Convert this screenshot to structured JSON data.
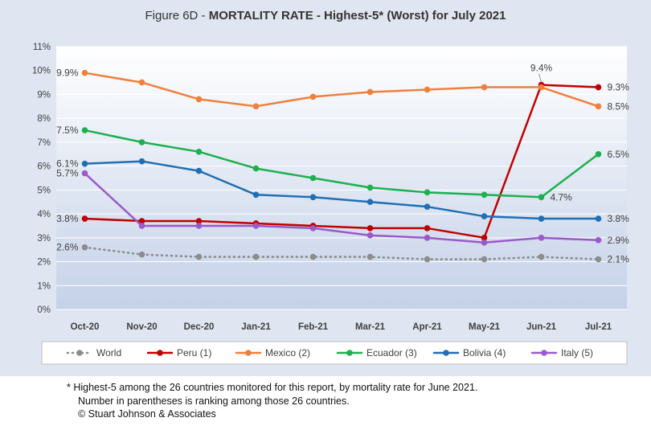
{
  "chart_data": {
    "type": "line",
    "title_prefix": "Figure 6D  - ",
    "title_main": "MORTALITY RATE - Highest-5* (Worst) for July 2021",
    "categories": [
      "Oct-20",
      "Nov-20",
      "Dec-20",
      "Jan-21",
      "Feb-21",
      "Mar-21",
      "Apr-21",
      "May-21",
      "Jun-21",
      "Jul-21"
    ],
    "y_ticks": [
      "0%",
      "1%",
      "2%",
      "3%",
      "4%",
      "5%",
      "6%",
      "7%",
      "8%",
      "9%",
      "10%",
      "11%"
    ],
    "ylim": [
      0,
      11
    ],
    "grid": true,
    "legend_position": "bottom",
    "series": [
      {
        "name": "World",
        "color": "#8c8c8c",
        "dashed": true,
        "values": [
          2.6,
          2.3,
          2.2,
          2.2,
          2.2,
          2.2,
          2.1,
          2.1,
          2.2,
          2.1
        ]
      },
      {
        "name": "Peru (1)",
        "color": "#c00000",
        "dashed": false,
        "values": [
          3.8,
          3.7,
          3.7,
          3.6,
          3.5,
          3.4,
          3.4,
          3.0,
          9.4,
          9.3
        ]
      },
      {
        "name": "Mexico (2)",
        "color": "#f07f3c",
        "dashed": false,
        "values": [
          9.9,
          9.5,
          8.8,
          8.5,
          8.9,
          9.1,
          9.2,
          9.3,
          9.3,
          8.5
        ]
      },
      {
        "name": "Ecuador (3)",
        "color": "#1db04f",
        "dashed": false,
        "values": [
          7.5,
          7.0,
          6.6,
          5.9,
          5.5,
          5.1,
          4.9,
          4.8,
          4.7,
          6.5
        ]
      },
      {
        "name": "Bolivia (4)",
        "color": "#1f6fb5",
        "dashed": false,
        "values": [
          6.1,
          6.2,
          5.8,
          4.8,
          4.7,
          4.5,
          4.3,
          3.9,
          3.8,
          3.8
        ]
      },
      {
        "name": "Italy (5)",
        "color": "#9b59c9",
        "dashed": false,
        "values": [
          5.7,
          3.5,
          3.5,
          3.5,
          3.4,
          3.1,
          3.0,
          2.8,
          3.0,
          2.9
        ]
      }
    ],
    "data_labels": [
      {
        "text": "9.9%",
        "series": 2,
        "index": 0,
        "side": "left"
      },
      {
        "text": "7.5%",
        "series": 3,
        "index": 0,
        "side": "left"
      },
      {
        "text": "6.1%",
        "series": 4,
        "index": 0,
        "side": "left"
      },
      {
        "text": "5.7%",
        "series": 5,
        "index": 0,
        "side": "left"
      },
      {
        "text": "3.8%",
        "series": 1,
        "index": 0,
        "side": "left"
      },
      {
        "text": "2.6%",
        "series": 0,
        "index": 0,
        "side": "left"
      },
      {
        "text": "9.4%",
        "series": 1,
        "index": 8,
        "side": "above"
      },
      {
        "text": "4.7%",
        "series": 3,
        "index": 8,
        "side": "right"
      },
      {
        "text": "9.3%",
        "series": 1,
        "index": 9,
        "side": "right"
      },
      {
        "text": "8.5%",
        "series": 2,
        "index": 9,
        "side": "right"
      },
      {
        "text": "6.5%",
        "series": 3,
        "index": 9,
        "side": "right"
      },
      {
        "text": "3.8%",
        "series": 4,
        "index": 9,
        "side": "right"
      },
      {
        "text": "2.9%",
        "series": 5,
        "index": 9,
        "side": "right"
      },
      {
        "text": "2.1%",
        "series": 0,
        "index": 9,
        "side": "right"
      }
    ]
  },
  "footnote": {
    "line1": "* Highest-5 among the 26 countries monitored for this report, by mortality rate for June 2021.",
    "line2": "Number in parentheses is ranking among those 26 countries.",
    "line3": "© Stuart Johnson & Associates"
  }
}
